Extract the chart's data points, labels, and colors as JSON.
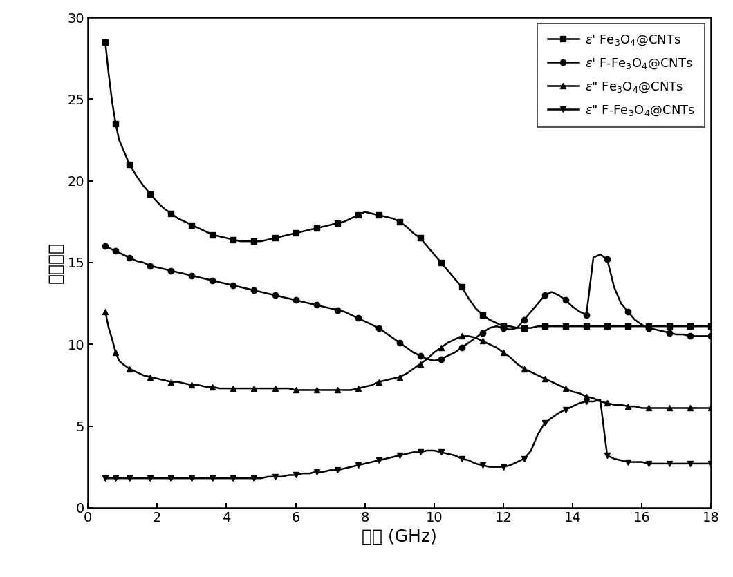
{
  "title": "",
  "xlabel": "频率 (GHz)",
  "ylabel": "介电常数",
  "xlim": [
    0,
    18
  ],
  "ylim": [
    0,
    30
  ],
  "xticks": [
    0,
    2,
    4,
    6,
    8,
    10,
    12,
    14,
    16,
    18
  ],
  "yticks": [
    0,
    5,
    10,
    15,
    20,
    25,
    30
  ],
  "color": "#000000",
  "linewidth": 1.8,
  "markersize": 6,
  "markevery": 3,
  "freq": [
    0.5,
    0.6,
    0.7,
    0.8,
    0.9,
    1.0,
    1.2,
    1.4,
    1.6,
    1.8,
    2.0,
    2.2,
    2.4,
    2.6,
    2.8,
    3.0,
    3.2,
    3.4,
    3.6,
    3.8,
    4.0,
    4.2,
    4.4,
    4.6,
    4.8,
    5.0,
    5.2,
    5.4,
    5.6,
    5.8,
    6.0,
    6.2,
    6.4,
    6.6,
    6.8,
    7.0,
    7.2,
    7.4,
    7.6,
    7.8,
    8.0,
    8.2,
    8.4,
    8.6,
    8.8,
    9.0,
    9.2,
    9.4,
    9.6,
    9.8,
    10.0,
    10.2,
    10.4,
    10.6,
    10.8,
    11.0,
    11.2,
    11.4,
    11.6,
    11.8,
    12.0,
    12.2,
    12.4,
    12.6,
    12.8,
    13.0,
    13.2,
    13.4,
    13.6,
    13.8,
    14.0,
    14.2,
    14.4,
    14.6,
    14.8,
    15.0,
    15.2,
    15.4,
    15.6,
    15.8,
    16.0,
    16.2,
    16.4,
    16.6,
    16.8,
    17.0,
    17.2,
    17.4,
    17.6,
    17.8,
    18.0
  ],
  "eps_prime_Fe3O4": [
    28.5,
    26.5,
    24.8,
    23.5,
    22.5,
    22.0,
    21.0,
    20.3,
    19.7,
    19.2,
    18.7,
    18.3,
    18.0,
    17.7,
    17.5,
    17.3,
    17.1,
    16.9,
    16.7,
    16.6,
    16.5,
    16.4,
    16.3,
    16.3,
    16.3,
    16.3,
    16.4,
    16.5,
    16.6,
    16.7,
    16.8,
    16.9,
    17.0,
    17.1,
    17.2,
    17.3,
    17.4,
    17.5,
    17.7,
    17.9,
    18.1,
    18.0,
    17.9,
    17.8,
    17.7,
    17.5,
    17.2,
    16.8,
    16.5,
    16.0,
    15.5,
    15.0,
    14.5,
    14.0,
    13.5,
    12.8,
    12.2,
    11.8,
    11.5,
    11.3,
    11.1,
    11.1,
    11.0,
    11.0,
    11.0,
    11.1,
    11.1,
    11.1,
    11.1,
    11.1,
    11.1,
    11.1,
    11.1,
    11.1,
    11.1,
    11.1,
    11.1,
    11.1,
    11.1,
    11.1,
    11.1,
    11.1,
    11.1,
    11.1,
    11.1,
    11.1,
    11.1,
    11.1,
    11.1,
    11.1,
    11.1
  ],
  "eps_prime_FFe3O4": [
    16.0,
    15.9,
    15.8,
    15.7,
    15.6,
    15.5,
    15.3,
    15.1,
    15.0,
    14.8,
    14.7,
    14.6,
    14.5,
    14.4,
    14.3,
    14.2,
    14.1,
    14.0,
    13.9,
    13.8,
    13.7,
    13.6,
    13.5,
    13.4,
    13.3,
    13.2,
    13.1,
    13.0,
    12.9,
    12.8,
    12.7,
    12.6,
    12.5,
    12.4,
    12.3,
    12.2,
    12.1,
    12.0,
    11.8,
    11.6,
    11.4,
    11.2,
    11.0,
    10.7,
    10.4,
    10.1,
    9.8,
    9.5,
    9.3,
    9.1,
    9.0,
    9.1,
    9.3,
    9.5,
    9.8,
    10.1,
    10.4,
    10.7,
    11.0,
    11.1,
    11.0,
    10.9,
    11.0,
    11.5,
    12.0,
    12.5,
    13.0,
    13.2,
    13.0,
    12.7,
    12.3,
    12.0,
    11.8,
    15.3,
    15.5,
    15.2,
    13.5,
    12.5,
    12.0,
    11.5,
    11.2,
    11.0,
    10.9,
    10.8,
    10.7,
    10.6,
    10.6,
    10.5,
    10.5,
    10.5,
    10.5
  ],
  "eps_dprime_Fe3O4": [
    12.0,
    11.0,
    10.3,
    9.5,
    9.0,
    8.8,
    8.5,
    8.3,
    8.1,
    8.0,
    7.9,
    7.8,
    7.7,
    7.7,
    7.6,
    7.5,
    7.5,
    7.4,
    7.4,
    7.3,
    7.3,
    7.3,
    7.3,
    7.3,
    7.3,
    7.3,
    7.3,
    7.3,
    7.3,
    7.3,
    7.2,
    7.2,
    7.2,
    7.2,
    7.2,
    7.2,
    7.2,
    7.2,
    7.2,
    7.3,
    7.4,
    7.5,
    7.7,
    7.8,
    7.9,
    8.0,
    8.2,
    8.5,
    8.8,
    9.1,
    9.5,
    9.8,
    10.1,
    10.3,
    10.5,
    10.5,
    10.4,
    10.2,
    10.0,
    9.8,
    9.5,
    9.2,
    8.8,
    8.5,
    8.3,
    8.1,
    7.9,
    7.7,
    7.5,
    7.3,
    7.1,
    7.0,
    6.8,
    6.7,
    6.5,
    6.4,
    6.3,
    6.3,
    6.2,
    6.2,
    6.1,
    6.1,
    6.1,
    6.1,
    6.1,
    6.1,
    6.1,
    6.1,
    6.1,
    6.1,
    6.1
  ],
  "eps_dprime_FFe3O4": [
    1.8,
    1.8,
    1.8,
    1.8,
    1.8,
    1.8,
    1.8,
    1.8,
    1.8,
    1.8,
    1.8,
    1.8,
    1.8,
    1.8,
    1.8,
    1.8,
    1.8,
    1.8,
    1.8,
    1.8,
    1.8,
    1.8,
    1.8,
    1.8,
    1.8,
    1.8,
    1.9,
    1.9,
    1.9,
    2.0,
    2.0,
    2.1,
    2.1,
    2.2,
    2.2,
    2.3,
    2.3,
    2.4,
    2.5,
    2.6,
    2.7,
    2.8,
    2.9,
    3.0,
    3.1,
    3.2,
    3.3,
    3.4,
    3.4,
    3.5,
    3.5,
    3.4,
    3.3,
    3.2,
    3.0,
    2.9,
    2.7,
    2.6,
    2.5,
    2.5,
    2.5,
    2.6,
    2.8,
    3.0,
    3.5,
    4.5,
    5.2,
    5.5,
    5.8,
    6.0,
    6.2,
    6.4,
    6.5,
    6.5,
    6.6,
    3.2,
    3.0,
    2.9,
    2.8,
    2.8,
    2.8,
    2.7,
    2.7,
    2.7,
    2.7,
    2.7,
    2.7,
    2.7,
    2.7,
    2.7,
    2.7
  ],
  "legend_fontsize": 13,
  "tick_labelsize": 14,
  "axis_labelsize": 18
}
